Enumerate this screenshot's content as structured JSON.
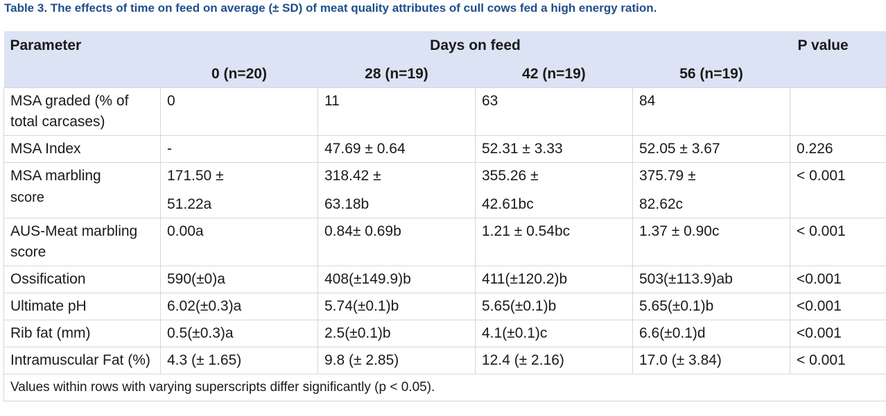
{
  "caption": "Table 3. The effects of time on feed on average (± SD) of meat quality attributes of cull cows fed a high energy ration.",
  "header": {
    "parameter": "Parameter",
    "days_on_feed": "Days on feed",
    "p_value": "P value",
    "groups": [
      "0 (n=20)",
      "28 (n=19)",
      "42 (n=19)",
      "56 (n=19)"
    ]
  },
  "rows": [
    {
      "label": "MSA graded (% of total carcases)",
      "d0": "0",
      "d28": "11",
      "d42": "63",
      "d56": "84",
      "p": ""
    },
    {
      "label": "MSA Index",
      "d0": "-",
      "d28": "47.69 ± 0.64",
      "d42": "52.31 ± 3.33",
      "d56": "52.05 ± 3.67",
      "p": "0.226"
    },
    {
      "label": "MSA marbling",
      "label2": "score",
      "d0": "171.50 ±",
      "d0b": "51.22a",
      "d28": "318.42 ±",
      "d28b": "63.18b",
      "d42": "355.26 ±",
      "d42b": "42.61bc",
      "d56": "375.79 ±",
      "d56b": "82.62c",
      "p": "< 0.001"
    },
    {
      "label": "AUS-Meat marbling score",
      "d0": "0.00a",
      "d28": "0.84± 0.69b",
      "d42": "1.21 ± 0.54bc",
      "d56": "1.37 ± 0.90c",
      "p": "< 0.001"
    },
    {
      "label": "Ossification",
      "d0": "590(±0)a",
      "d28": "408(±149.9)b",
      "d42": "411(±120.2)b",
      "d56": "503(±113.9)ab",
      "p": "<0.001"
    },
    {
      "label": "Ultimate pH",
      "d0": "6.02(±0.3)a",
      "d28": "5.74(±0.1)b",
      "d42": "5.65(±0.1)b",
      "d56": "5.65(±0.1)b",
      "p": "<0.001"
    },
    {
      "label": "Rib fat (mm)",
      "d0": "0.5(±0.3)a",
      "d28": "2.5(±0.1)b",
      "d42": "4.1(±0.1)c",
      "d56": "6.6(±0.1)d",
      "p": "<0.001"
    },
    {
      "label": "Intramuscular Fat (%)",
      "d0": "4.3 (± 1.65)",
      "d28": "9.8 (± 2.85)",
      "d42": "12.4 (± 2.16)",
      "d56": "17.0 (± 3.84)",
      "p": "< 0.001"
    }
  ],
  "footnote": "Values within rows with varying superscripts differ significantly (p < 0.05)."
}
